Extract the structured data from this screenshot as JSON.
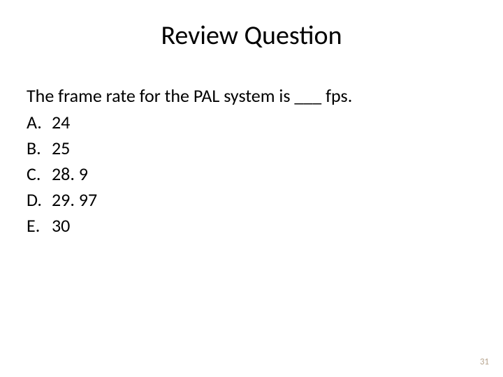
{
  "title": "Review Question",
  "question": "The frame rate for the PAL system is ___ fps.",
  "options": [
    {
      "letter": "A.",
      "value": "24"
    },
    {
      "letter": "B.",
      "value": "25"
    },
    {
      "letter": "C.",
      "value": "28. 9"
    },
    {
      "letter": "D.",
      "value": "29. 97"
    },
    {
      "letter": "E.",
      "value": "30"
    }
  ],
  "pageNumber": "31",
  "colors": {
    "background": "#ffffff",
    "text": "#000000",
    "pageNumber": "#b8a690"
  },
  "fontSizes": {
    "title": 38,
    "body": 26,
    "pageNumber": 13
  }
}
